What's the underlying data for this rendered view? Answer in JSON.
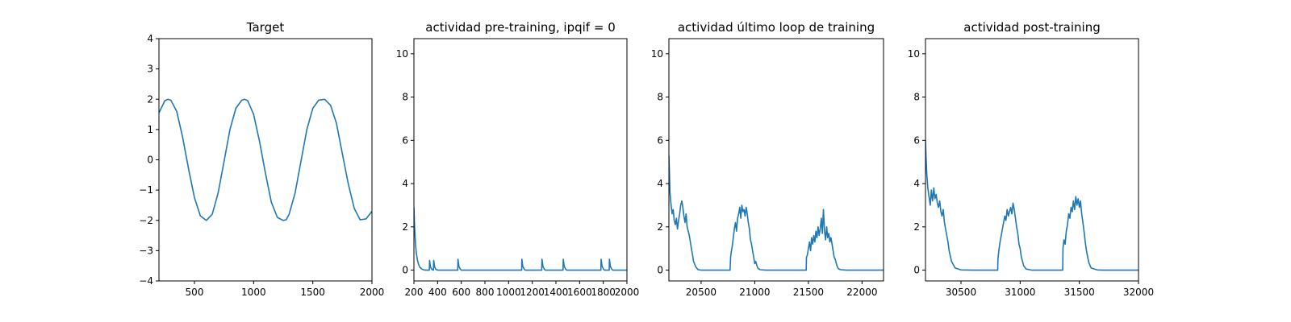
{
  "chart_data": [
    {
      "type": "line",
      "title": "Target",
      "xlim": [
        200,
        2000
      ],
      "ylim": [
        -4,
        4
      ],
      "xticks": [
        500,
        1000,
        1500,
        2000
      ],
      "yticks": [
        -4,
        -3,
        -2,
        -1,
        0,
        1,
        2,
        3,
        4
      ],
      "xtick_labels": [
        "500",
        "1000",
        "1500",
        "2000"
      ],
      "ytick_labels": [
        "−4",
        "−3",
        "−2",
        "−1",
        "0",
        "1",
        "2",
        "3",
        "4"
      ],
      "color": "#1f77b4",
      "series": [
        {
          "x": [
            200,
            250,
            275,
            300,
            350,
            400,
            450,
            500,
            550,
            600,
            650,
            700,
            750,
            800,
            850,
            900,
            925,
            950,
            1000,
            1050,
            1100,
            1150,
            1200,
            1250,
            1275,
            1300,
            1350,
            1400,
            1450,
            1500,
            1550,
            1600,
            1650,
            1700,
            1750,
            1800,
            1850,
            1900,
            1950,
            2000
          ],
          "y": [
            1.55,
            1.95,
            2.0,
            1.97,
            1.6,
            0.75,
            -0.3,
            -1.25,
            -1.85,
            -2.0,
            -1.8,
            -1.1,
            -0.05,
            1.0,
            1.7,
            1.97,
            2.0,
            1.95,
            1.5,
            0.6,
            -0.45,
            -1.4,
            -1.9,
            -2.0,
            -1.98,
            -1.8,
            -1.1,
            -0.05,
            1.0,
            1.7,
            1.97,
            2.0,
            1.8,
            1.2,
            0.2,
            -0.8,
            -1.6,
            -1.98,
            -1.95,
            -1.7
          ]
        }
      ]
    },
    {
      "type": "line",
      "title": "actividad pre-training, ipqif = 0",
      "xlim": [
        200,
        2000
      ],
      "ylim": [
        -0.5,
        10.7
      ],
      "xticks": [
        200,
        400,
        600,
        800,
        1000,
        1200,
        1400,
        1600,
        1800,
        2000
      ],
      "yticks": [
        0,
        2,
        4,
        6,
        8,
        10
      ],
      "xtick_labels": [
        "200",
        "400",
        "600",
        "800",
        "1000",
        "1200",
        "1400",
        "1600",
        "1800",
        "2000"
      ],
      "ytick_labels": [
        "0",
        "2",
        "4",
        "6",
        "8",
        "10"
      ],
      "color": "#1f77b4",
      "series": [
        {
          "x": [
            200,
            205,
            210,
            215,
            220,
            230,
            240,
            250,
            260,
            270,
            285,
            300,
            320,
            330,
            332,
            340,
            350,
            365,
            367,
            375,
            385,
            400,
            570,
            572,
            580,
            590,
            600,
            1110,
            1112,
            1120,
            1130,
            1140,
            1280,
            1282,
            1290,
            1300,
            1310,
            1460,
            1462,
            1470,
            1480,
            1490,
            1780,
            1782,
            1790,
            1800,
            1810,
            1850,
            1852,
            1860,
            1870,
            1880,
            2000
          ],
          "y": [
            2.9,
            2.1,
            1.5,
            1.1,
            0.8,
            0.45,
            0.25,
            0.14,
            0.08,
            0.04,
            0.01,
            0,
            0,
            0,
            0.45,
            0.15,
            0.04,
            0,
            0.45,
            0.15,
            0.04,
            0,
            0,
            0.5,
            0.18,
            0.06,
            0,
            0,
            0.5,
            0.18,
            0.06,
            0,
            0,
            0.5,
            0.18,
            0.06,
            0,
            0,
            0.5,
            0.18,
            0.06,
            0,
            0,
            0.5,
            0.18,
            0.06,
            0,
            0,
            0.5,
            0.18,
            0.06,
            0,
            0
          ]
        }
      ]
    },
    {
      "type": "line",
      "title": "actividad último loop de training",
      "xlim": [
        20200,
        22200
      ],
      "ylim": [
        -0.5,
        10.7
      ],
      "xticks": [
        20500,
        21000,
        21500,
        22000
      ],
      "yticks": [
        0,
        2,
        4,
        6,
        8,
        10
      ],
      "xtick_labels": [
        "20500",
        "21000",
        "21500",
        "22000"
      ],
      "ytick_labels": [
        "0",
        "2",
        "4",
        "6",
        "8",
        "10"
      ],
      "color": "#1f77b4",
      "series": [
        {
          "x": [
            20200,
            20205,
            20210,
            20220,
            20230,
            20240,
            20250,
            20260,
            20270,
            20280,
            20290,
            20300,
            20310,
            20320,
            20330,
            20340,
            20350,
            20360,
            20370,
            20380,
            20390,
            20400,
            20410,
            20420,
            20430,
            20450,
            20470,
            20500,
            20550,
            20600,
            20700,
            20770,
            20775,
            20780,
            20790,
            20800,
            20810,
            20820,
            20830,
            20840,
            20850,
            20860,
            20870,
            20880,
            20890,
            20900,
            20910,
            20920,
            20930,
            20940,
            20950,
            20960,
            20970,
            20980,
            20990,
            21000,
            21010,
            21020,
            21030,
            21050,
            21100,
            21200,
            21300,
            21400,
            21480,
            21482,
            21490,
            21500,
            21510,
            21520,
            21530,
            21540,
            21550,
            21560,
            21570,
            21580,
            21590,
            21600,
            21610,
            21620,
            21630,
            21640,
            21650,
            21660,
            21670,
            21680,
            21690,
            21700,
            21710,
            21720,
            21730,
            21740,
            21750,
            21760,
            21770,
            21780,
            21800,
            21850,
            21900,
            22000,
            22200
          ],
          "y": [
            5.3,
            4.4,
            3.6,
            3.0,
            2.6,
            2.8,
            2.3,
            2.1,
            2.4,
            1.9,
            2.3,
            2.6,
            3.0,
            3.2,
            2.9,
            2.5,
            2.2,
            2.6,
            2.0,
            1.8,
            1.6,
            1.3,
            1.0,
            0.7,
            0.4,
            0.15,
            0.03,
            0,
            0,
            0,
            0,
            0,
            0.6,
            0.8,
            1.1,
            1.5,
            1.9,
            2.2,
            1.8,
            2.4,
            2.6,
            2.9,
            2.4,
            3.0,
            2.7,
            2.8,
            2.5,
            2.9,
            2.6,
            2.2,
            1.9,
            1.4,
            1.2,
            0.9,
            0.6,
            0.3,
            0.4,
            0.2,
            0.08,
            0.02,
            0,
            0,
            0,
            0,
            0,
            0.6,
            0.7,
            1.0,
            1.3,
            0.9,
            1.5,
            1.2,
            1.6,
            1.3,
            1.8,
            1.5,
            2.0,
            1.6,
            1.9,
            2.4,
            1.7,
            2.8,
            1.8,
            1.4,
            2.0,
            1.5,
            1.7,
            1.3,
            1.5,
            1.2,
            0.9,
            0.6,
            0.5,
            0.3,
            0.15,
            0.06,
            0.02,
            0,
            0,
            0,
            0
          ]
        }
      ]
    },
    {
      "type": "line",
      "title": "actividad post-training",
      "xlim": [
        30200,
        32000
      ],
      "ylim": [
        -0.5,
        10.7
      ],
      "xticks": [
        30500,
        31000,
        31500,
        32000
      ],
      "yticks": [
        0,
        2,
        4,
        6,
        8,
        10
      ],
      "xtick_labels": [
        "30500",
        "31000",
        "31500",
        "32000"
      ],
      "ytick_labels": [
        "0",
        "2",
        "4",
        "6",
        "8",
        "10"
      ],
      "color": "#1f77b4",
      "series": [
        {
          "x": [
            30200,
            30205,
            30210,
            30220,
            30230,
            30240,
            30250,
            30260,
            30270,
            30280,
            30290,
            30300,
            30310,
            30320,
            30330,
            30340,
            30350,
            30360,
            30370,
            30380,
            30390,
            30400,
            30420,
            30450,
            30500,
            30600,
            30700,
            30810,
            30812,
            30820,
            30830,
            30840,
            30850,
            30860,
            30870,
            30880,
            30890,
            30900,
            30910,
            30920,
            30930,
            30940,
            30950,
            30960,
            30970,
            30980,
            30990,
            31000,
            31010,
            31020,
            31030,
            31050,
            31100,
            31200,
            31300,
            31360,
            31362,
            31370,
            31380,
            31390,
            31400,
            31410,
            31420,
            31430,
            31440,
            31450,
            31460,
            31470,
            31480,
            31490,
            31500,
            31510,
            31520,
            31530,
            31540,
            31550,
            31560,
            31580,
            31600,
            31650,
            31700,
            31800,
            32000
          ],
          "y": [
            6.0,
            5.2,
            4.5,
            3.8,
            3.4,
            3.0,
            3.7,
            3.2,
            3.8,
            3.3,
            3.5,
            3.1,
            2.9,
            3.2,
            2.7,
            2.5,
            2.8,
            2.2,
            1.9,
            1.6,
            1.3,
            0.9,
            0.4,
            0.1,
            0.01,
            0,
            0,
            0,
            0.5,
            0.9,
            1.3,
            1.6,
            1.9,
            2.2,
            2.5,
            2.3,
            2.8,
            2.5,
            2.7,
            2.9,
            2.6,
            3.1,
            2.8,
            2.4,
            2.0,
            1.7,
            1.2,
            1.0,
            0.6,
            0.4,
            0.2,
            0.05,
            0,
            0,
            0,
            0,
            1.0,
            1.4,
            1.2,
            1.8,
            2.1,
            2.6,
            2.4,
            2.9,
            2.7,
            3.2,
            2.8,
            3.4,
            3.0,
            3.3,
            2.9,
            3.2,
            2.6,
            2.2,
            1.8,
            1.3,
            0.9,
            0.35,
            0.1,
            0.01,
            0,
            0,
            0
          ]
        }
      ]
    }
  ]
}
